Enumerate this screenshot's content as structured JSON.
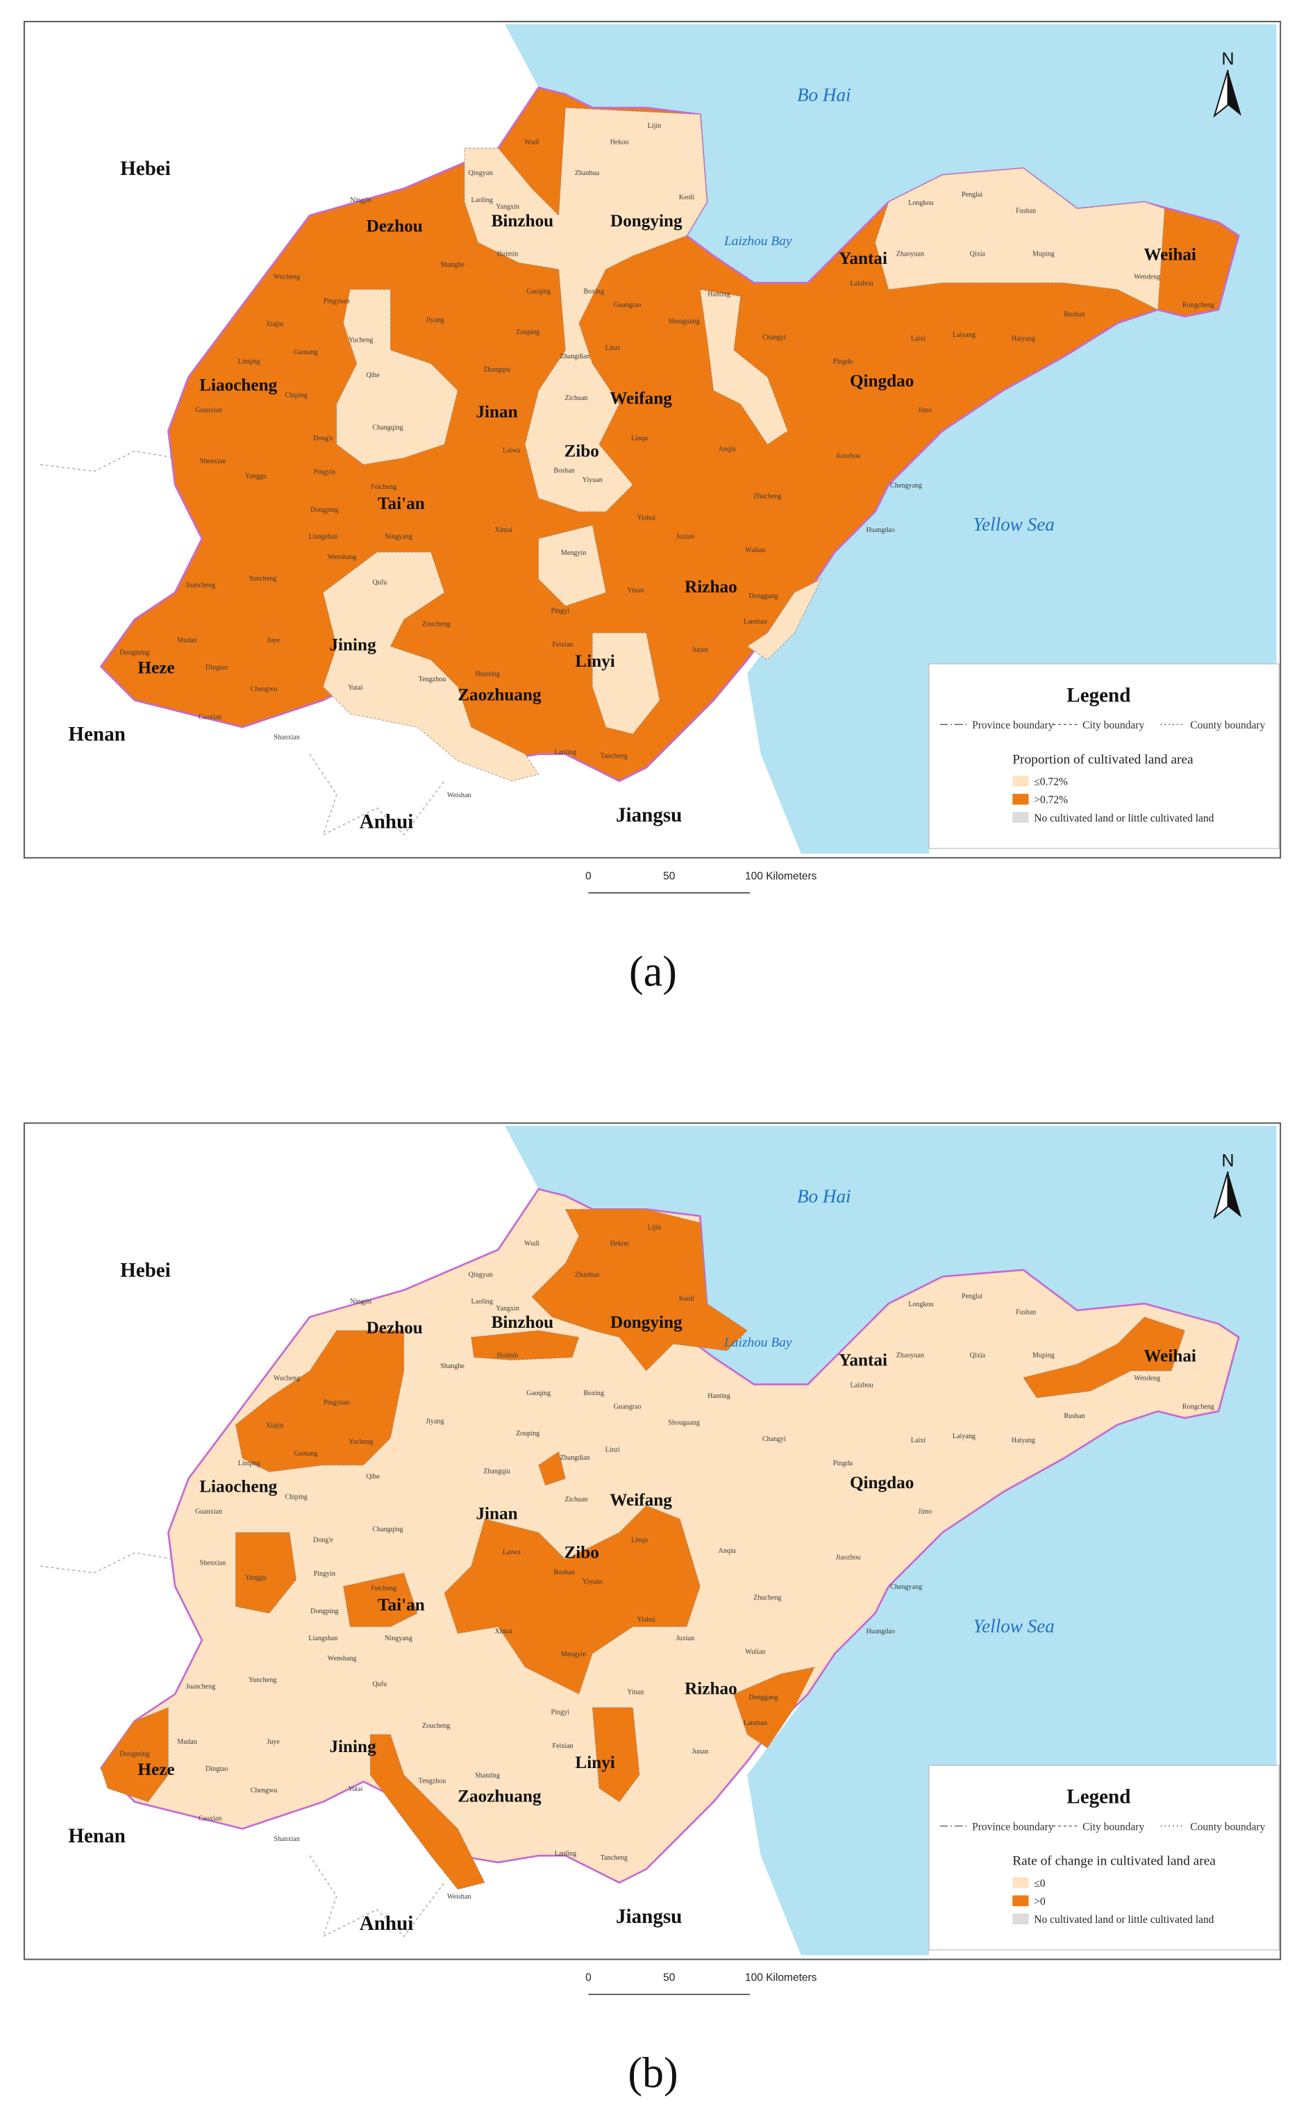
{
  "regions": {
    "provinces": [
      "Hebei",
      "Henan",
      "Anhui",
      "Jiangsu"
    ],
    "seas": [
      "Bo Hai",
      "Laizhou Bay",
      "Yellow Sea"
    ],
    "cities": [
      "Dezhou",
      "Binzhou",
      "Dongying",
      "Yantai",
      "Weihai",
      "Liaocheng",
      "Jinan",
      "Zibo",
      "Weifang",
      "Qingdao",
      "Tai'an",
      "Rizhao",
      "Heze",
      "Jining",
      "Linyi",
      "Zaozhuang"
    ],
    "counties": [
      "Wudi",
      "Zhanhua",
      "Lijin",
      "Kenli",
      "Hekou",
      "Laoling",
      "Ningjin",
      "Qingyun",
      "Yangxin",
      "Huimin",
      "Boxing",
      "Gaoqing",
      "Guangrao",
      "Shouguang",
      "Hanting",
      "Changyi",
      "Laizhou",
      "Zhaoyuan",
      "Penglai",
      "Longkou",
      "Qixia",
      "Fushan",
      "Muping",
      "Rongcheng",
      "Wendeng",
      "Rushan",
      "Haiyang",
      "Laiyang",
      "Laixi",
      "Pingdu",
      "Jimo",
      "Jiaozhou",
      "Huangdao",
      "Zhucheng",
      "Wulian",
      "Juxian",
      "Yinan",
      "Pingyi",
      "Mengyin",
      "Yishui",
      "Linqu",
      "Anqiu",
      "Xintai",
      "Laiwu",
      "Feicheng",
      "Ningyang",
      "Wenshang",
      "Qufu",
      "Zoucheng",
      "Yutai",
      "Weishan",
      "Tengzhou",
      "Shanting",
      "Juancheng",
      "Yuncheng",
      "Juye",
      "Dingtao",
      "Mudan",
      "Chengwu",
      "Shanxian",
      "Caoxian",
      "Dongming",
      "Liangshan",
      "Dongping",
      "Pingyin",
      "Changqing",
      "Qihe",
      "Yucheng",
      "Pingyuan",
      "Xiajin",
      "Wucheng",
      "Gaotang",
      "Chiping",
      "Linqing",
      "Guanxian",
      "Shenxian",
      "Yanggu",
      "Dong'e",
      "Tancheng",
      "Lanling",
      "Feixian",
      "Junan",
      "Lanshan",
      "Donggang",
      "Zouping",
      "Zhangqiu",
      "Jiyang",
      "Shanghe",
      "Zhangdian",
      "Linzi",
      "Yiyuan",
      "Boshan",
      "Zichuan",
      "Chengyang"
    ]
  },
  "panels": [
    {
      "caption": "(a)",
      "north": "N",
      "scale": [
        "0",
        "50",
        "100 Kilometers"
      ],
      "legend": {
        "title": "Legend",
        "boundaries": [
          "Province boundary",
          "City boundary",
          "County boundary"
        ],
        "subtitle": "Proportion of cultivated land area",
        "classes": [
          {
            "label": "≤0.72%",
            "color": "#fde3c1"
          },
          {
            "label": ">0.72%",
            "color": "#ee7a14"
          },
          {
            "label": "No cultivated land or little cultivated land",
            "color": "#dcdcdc"
          }
        ]
      }
    },
    {
      "caption": "(b)",
      "north": "N",
      "scale": [
        "0",
        "50",
        "100 Kilometers"
      ],
      "legend": {
        "title": "Legend",
        "boundaries": [
          "Province boundary",
          "City boundary",
          "County boundary"
        ],
        "subtitle": "Rate of change in cultivated land area",
        "classes": [
          {
            "label": "≤0",
            "color": "#fde3c1"
          },
          {
            "label": ">0",
            "color": "#ee7a14"
          },
          {
            "label": "No cultivated land or little cultivated land",
            "color": "#dcdcdc"
          }
        ]
      }
    }
  ]
}
